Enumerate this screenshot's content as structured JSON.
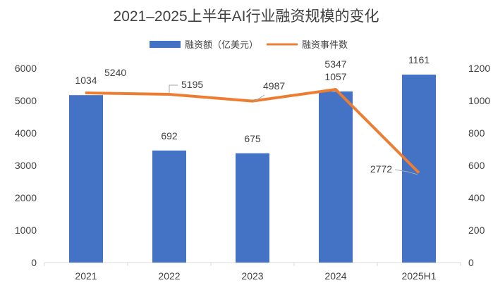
{
  "chart_data": {
    "type": "bar+line",
    "title": "2021–2025上半年AI行业融资规模的变化",
    "categories": [
      "2021",
      "2022",
      "2023",
      "2024",
      "2025H1"
    ],
    "series": [
      {
        "name": "融资额（亿美元）",
        "type": "bar",
        "axis": "right",
        "color": "#4472C4",
        "values": [
          1034,
          692,
          675,
          1057,
          1161
        ],
        "labels": [
          "1034",
          "692",
          "675",
          "1057",
          "1161"
        ]
      },
      {
        "name": "融资事件数",
        "type": "line",
        "axis": "left",
        "color": "#ED7D31",
        "values": [
          5240,
          5195,
          4987,
          5347,
          2772
        ],
        "labels": [
          "5240",
          "5195",
          "4987",
          "5347",
          "2772"
        ]
      }
    ],
    "y_left": {
      "range": [
        0,
        6000
      ],
      "ticks": [
        "0",
        "1000",
        "2000",
        "3000",
        "4000",
        "5000",
        "6000"
      ]
    },
    "y_right": {
      "range": [
        0,
        1200
      ],
      "ticks": [
        "0",
        "200",
        "400",
        "600",
        "800",
        "1000",
        "1200"
      ]
    },
    "grid": false,
    "legend_position": "top"
  }
}
